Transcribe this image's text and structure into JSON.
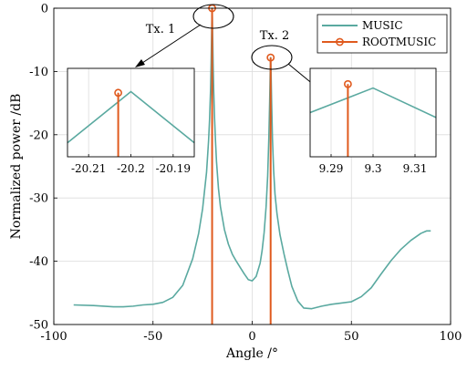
{
  "chart_data": {
    "type": "line",
    "xlabel": "Angle /°",
    "ylabel": "Normalized power /dB",
    "xlim": [
      -100,
      100
    ],
    "ylim": [
      -50,
      0
    ],
    "xticks": [
      "-100",
      "-50",
      "0",
      "50",
      "100"
    ],
    "yticks": [
      "0",
      "-10",
      "-20",
      "-30",
      "-40",
      "-50"
    ],
    "grid": true,
    "legend": {
      "position": "top-right",
      "entries": [
        "MUSIC",
        "ROOTMUSIC"
      ]
    },
    "colors": {
      "music": "#5aa9a0",
      "rootmusic": "#e05a1e"
    },
    "series": [
      {
        "name": "MUSIC",
        "style": "line",
        "x": [
          -90,
          -80,
          -70,
          -65,
          -60,
          -55,
          -50,
          -45,
          -40,
          -35,
          -30,
          -27,
          -25,
          -23,
          -22,
          -21.5,
          -21,
          -20.7,
          -20.5,
          -20.3,
          -20.2,
          -20.1,
          -19.9,
          -19.7,
          -19.4,
          -19,
          -18.5,
          -18,
          -17,
          -16,
          -14,
          -12,
          -10,
          -8,
          -6,
          -4,
          -2,
          0,
          2,
          4,
          5,
          6,
          7,
          7.8,
          8.4,
          8.8,
          9.1,
          9.3,
          9.5,
          9.8,
          10.2,
          10.8,
          11.5,
          12.5,
          14,
          16,
          18,
          20,
          23,
          26,
          30,
          35,
          40,
          45,
          50,
          55,
          60,
          65,
          70,
          75,
          80,
          85,
          88,
          90
        ],
        "y": [
          -46.9,
          -47.0,
          -47.2,
          -47.2,
          -47.1,
          -46.9,
          -46.8,
          -46.5,
          -45.7,
          -43.8,
          -39.6,
          -35.6,
          -31.7,
          -25.9,
          -21.0,
          -17.7,
          -13.0,
          -8.6,
          -5.0,
          -1.5,
          0,
          -1.5,
          -5.0,
          -8.7,
          -13.0,
          -17.2,
          -21.0,
          -24.2,
          -28.5,
          -31.4,
          -35.0,
          -37.3,
          -38.9,
          -40.0,
          -41.0,
          -42.0,
          -42.9,
          -43.1,
          -42.4,
          -40.3,
          -38.3,
          -35.5,
          -31.4,
          -26.5,
          -20.4,
          -14.8,
          -10.0,
          -7.8,
          -10.0,
          -14.8,
          -20.5,
          -25.6,
          -29.4,
          -32.5,
          -35.8,
          -38.8,
          -41.5,
          -44.0,
          -46.3,
          -47.4,
          -47.5,
          -47.1,
          -46.8,
          -46.6,
          -46.4,
          -45.6,
          -44.2,
          -42.0,
          -39.9,
          -38.1,
          -36.7,
          -35.6,
          -35.2,
          -35.2
        ]
      },
      {
        "name": "ROOTMUSIC",
        "style": "stem",
        "x": [
          -20.203,
          9.294
        ],
        "y": [
          0,
          -7.8
        ]
      }
    ],
    "insets": [
      {
        "annotation": "Tx. 1",
        "xlim": [
          -20.215,
          -20.185
        ],
        "xticks": [
          "-20.21",
          "-20.2",
          "-20.19"
        ],
        "music_x": [
          -20.215,
          -20.2,
          -20.185
        ],
        "music_y": [
          -2.6,
          -0.4,
          -2.6
        ],
        "stem_x": -20.203,
        "stem_y": -0.45,
        "ylim": [
          -3.2,
          0.6
        ]
      },
      {
        "annotation": "Tx. 2",
        "xlim": [
          9.285,
          9.315
        ],
        "xticks": [
          "9.29",
          "9.3",
          "9.31"
        ],
        "music_x": [
          9.285,
          9.3,
          9.315
        ],
        "music_y": [
          -8.05,
          -7.8,
          -8.1
        ],
        "stem_x": 9.294,
        "stem_y": -7.76,
        "ylim": [
          -8.5,
          -7.6
        ]
      }
    ]
  }
}
